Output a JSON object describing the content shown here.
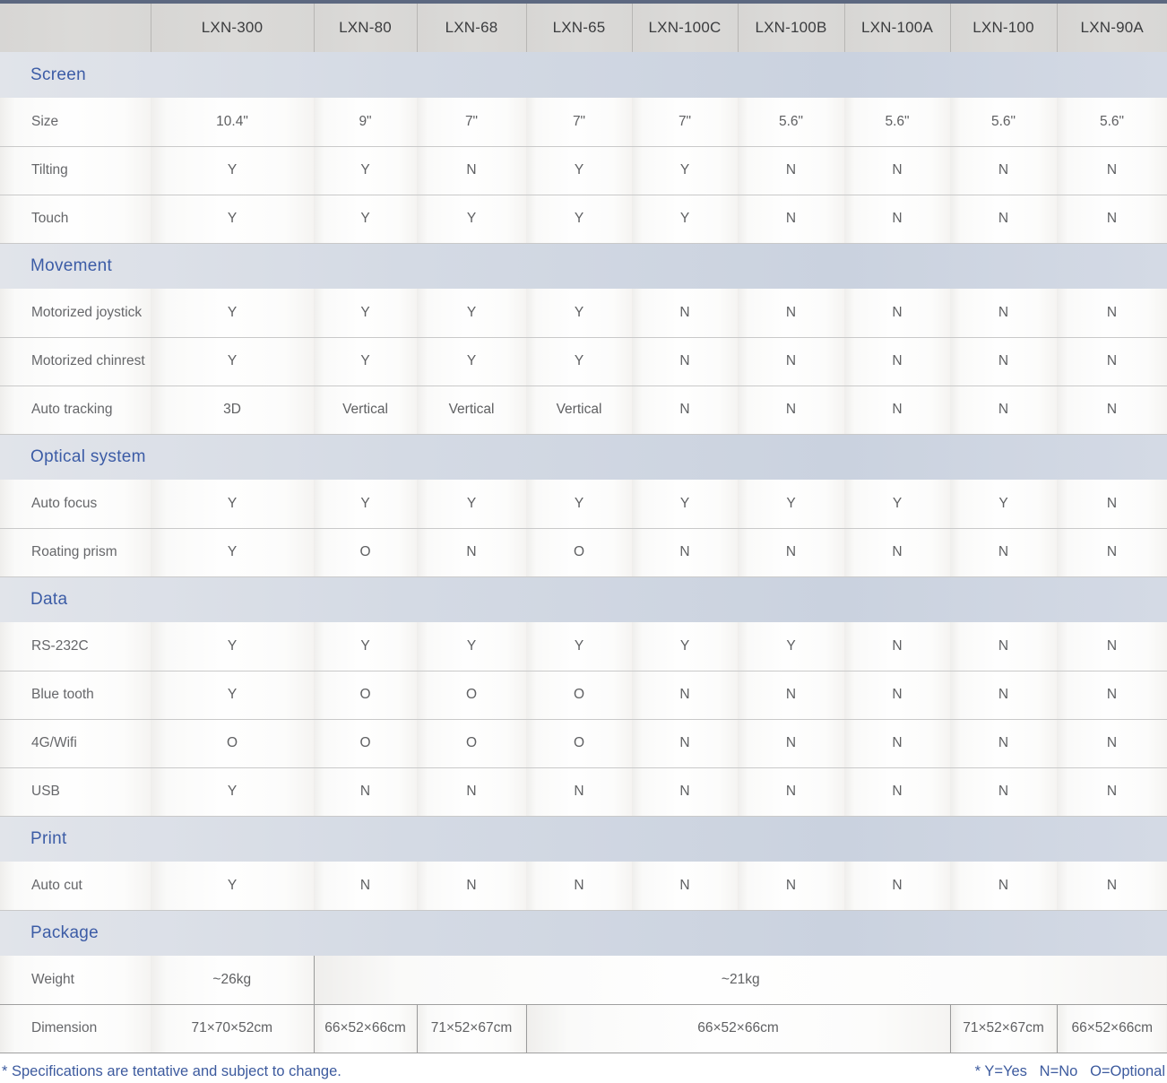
{
  "table": {
    "models": [
      "LXN-300",
      "LXN-80",
      "LXN-68",
      "LXN-65",
      "LXN-100C",
      "LXN-100B",
      "LXN-100A",
      "LXN-100",
      "LXN-90A"
    ],
    "sections": [
      {
        "title": "Screen",
        "rows": [
          {
            "label": "Size",
            "cells": [
              {
                "text": "10.4\""
              },
              {
                "text": "9\""
              },
              {
                "text": "7\""
              },
              {
                "text": "7\""
              },
              {
                "text": "7\""
              },
              {
                "text": "5.6\""
              },
              {
                "text": "5.6\""
              },
              {
                "text": "5.6\""
              },
              {
                "text": "5.6\""
              }
            ]
          },
          {
            "label": "Tilting",
            "cells": [
              {
                "text": "Y"
              },
              {
                "text": "Y"
              },
              {
                "text": "N"
              },
              {
                "text": "Y"
              },
              {
                "text": "Y"
              },
              {
                "text": "N"
              },
              {
                "text": "N"
              },
              {
                "text": "N"
              },
              {
                "text": "N"
              }
            ]
          },
          {
            "label": "Touch",
            "cells": [
              {
                "text": "Y"
              },
              {
                "text": "Y"
              },
              {
                "text": "Y"
              },
              {
                "text": "Y"
              },
              {
                "text": "Y"
              },
              {
                "text": "N"
              },
              {
                "text": "N"
              },
              {
                "text": "N"
              },
              {
                "text": "N"
              }
            ]
          }
        ]
      },
      {
        "title": "Movement",
        "rows": [
          {
            "label": "Motorized joystick",
            "cells": [
              {
                "text": "Y"
              },
              {
                "text": "Y"
              },
              {
                "text": "Y"
              },
              {
                "text": "Y"
              },
              {
                "text": "N"
              },
              {
                "text": "N"
              },
              {
                "text": "N"
              },
              {
                "text": "N"
              },
              {
                "text": "N"
              }
            ]
          },
          {
            "label": "Motorized chinrest",
            "cells": [
              {
                "text": "Y"
              },
              {
                "text": "Y"
              },
              {
                "text": "Y"
              },
              {
                "text": "Y"
              },
              {
                "text": "N"
              },
              {
                "text": "N"
              },
              {
                "text": "N"
              },
              {
                "text": "N"
              },
              {
                "text": "N"
              }
            ]
          },
          {
            "label": "Auto tracking",
            "cells": [
              {
                "text": "3D"
              },
              {
                "text": "Vertical"
              },
              {
                "text": "Vertical"
              },
              {
                "text": "Vertical"
              },
              {
                "text": "N"
              },
              {
                "text": "N"
              },
              {
                "text": "N"
              },
              {
                "text": "N"
              },
              {
                "text": "N"
              }
            ]
          }
        ]
      },
      {
        "title": "Optical system",
        "rows": [
          {
            "label": "Auto focus",
            "cells": [
              {
                "text": "Y"
              },
              {
                "text": "Y"
              },
              {
                "text": "Y"
              },
              {
                "text": "Y"
              },
              {
                "text": "Y"
              },
              {
                "text": "Y"
              },
              {
                "text": "Y"
              },
              {
                "text": "Y"
              },
              {
                "text": "N"
              }
            ]
          },
          {
            "label": "Roating prism",
            "cells": [
              {
                "text": "Y"
              },
              {
                "text": "O"
              },
              {
                "text": "N"
              },
              {
                "text": "O"
              },
              {
                "text": "N"
              },
              {
                "text": "N"
              },
              {
                "text": "N"
              },
              {
                "text": "N"
              },
              {
                "text": "N"
              }
            ]
          }
        ]
      },
      {
        "title": "Data",
        "rows": [
          {
            "label": "RS-232C",
            "cells": [
              {
                "text": "Y"
              },
              {
                "text": "Y"
              },
              {
                "text": "Y"
              },
              {
                "text": "Y"
              },
              {
                "text": "Y"
              },
              {
                "text": "Y"
              },
              {
                "text": "N"
              },
              {
                "text": "N"
              },
              {
                "text": "N"
              }
            ]
          },
          {
            "label": "Blue tooth",
            "cells": [
              {
                "text": "Y"
              },
              {
                "text": "O"
              },
              {
                "text": "O"
              },
              {
                "text": "O"
              },
              {
                "text": "N"
              },
              {
                "text": "N"
              },
              {
                "text": "N"
              },
              {
                "text": "N"
              },
              {
                "text": "N"
              }
            ]
          },
          {
            "label": "4G/Wifi",
            "cells": [
              {
                "text": "O"
              },
              {
                "text": "O"
              },
              {
                "text": "O"
              },
              {
                "text": "O"
              },
              {
                "text": "N"
              },
              {
                "text": "N"
              },
              {
                "text": "N"
              },
              {
                "text": "N"
              },
              {
                "text": "N"
              }
            ]
          },
          {
            "label": "USB",
            "cells": [
              {
                "text": "Y"
              },
              {
                "text": "N"
              },
              {
                "text": "N"
              },
              {
                "text": "N"
              },
              {
                "text": "N"
              },
              {
                "text": "N"
              },
              {
                "text": "N"
              },
              {
                "text": "N"
              },
              {
                "text": "N"
              }
            ]
          }
        ]
      },
      {
        "title": "Print",
        "rows": [
          {
            "label": "Auto cut",
            "cells": [
              {
                "text": "Y"
              },
              {
                "text": "N"
              },
              {
                "text": "N"
              },
              {
                "text": "N"
              },
              {
                "text": "N"
              },
              {
                "text": "N"
              },
              {
                "text": "N"
              },
              {
                "text": "N"
              },
              {
                "text": "N"
              }
            ]
          }
        ]
      },
      {
        "title": "Package",
        "rows": [
          {
            "label": "Weight",
            "divided": true,
            "cells": [
              {
                "text": "~26kg",
                "span": 1
              },
              {
                "text": "~21kg",
                "span": 8
              }
            ]
          },
          {
            "label": "Dimension",
            "divided": true,
            "cells": [
              {
                "text": "71×70×52cm",
                "span": 1
              },
              {
                "text": "66×52×66cm",
                "span": 1
              },
              {
                "text": "71×52×67cm",
                "span": 1
              },
              {
                "text": "66×52×66cm",
                "span": 4
              },
              {
                "text": "71×52×67cm",
                "span": 1
              },
              {
                "text": "66×52×66cm",
                "span": 1
              }
            ]
          }
        ]
      }
    ]
  },
  "footer": {
    "left": "* Specifications are tentative and subject to change.",
    "right": "* Y=Yes   N=No   O=Optional"
  },
  "legend": {
    "Y": "Yes",
    "N": "No",
    "O": "Optional"
  },
  "colors": {
    "accent_blue": "#3c5ca6",
    "top_border": "#5c6880",
    "header_bg": "#d9d8d6",
    "section_band": "#d2d9e3",
    "footer_text": "#3c5a9e"
  }
}
